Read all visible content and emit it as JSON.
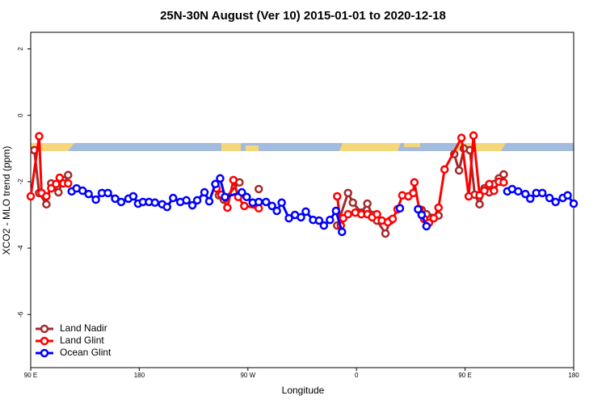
{
  "chart_data": {
    "type": "line",
    "title": "25N-30N August (Ver 10)   2015-01-01 to 2020-12-18",
    "x_label": "Longitude",
    "y_label": "XCO2 - MLO trend (ppm)",
    "xlim": [
      90,
      540
    ],
    "ylim": [
      -7.6,
      2.5
    ],
    "xticks": [
      {
        "value": 90,
        "label": "90 E"
      },
      {
        "value": 180,
        "label": "180"
      },
      {
        "value": 270,
        "label": "90 W"
      },
      {
        "value": 360,
        "label": "0"
      },
      {
        "value": 450,
        "label": "90 E"
      },
      {
        "value": 540,
        "label": "180"
      }
    ],
    "yticks": [
      -6,
      -4,
      -2,
      0,
      2
    ],
    "legend_position": "bottom-left",
    "series": [
      {
        "name": "Land Nadir",
        "color": "#a52a2a",
        "x": [
          93,
          97,
          103,
          107,
          113,
          117,
          121,
          null,
          246,
          250,
          263,
          null,
          279,
          null,
          344,
          353,
          357,
          364,
          369,
          373,
          377,
          384,
          388,
          null,
          414,
          418,
          428,
          null,
          441,
          445,
          449,
          454,
          458,
          462,
          466,
          470,
          474,
          478,
          482
        ],
        "values": [
          -1.05,
          -2.34,
          -2.68,
          -2.05,
          -2.32,
          -1.95,
          -1.8,
          null,
          -2.41,
          -2.54,
          -2.02,
          null,
          -2.22,
          null,
          -3.32,
          -2.34,
          -2.63,
          -2.93,
          -2.66,
          -3.0,
          -3.17,
          -3.56,
          -3.17,
          null,
          -2.85,
          -2.98,
          -3.02,
          null,
          -1.17,
          -1.66,
          -1.0,
          -1.05,
          -2.39,
          -2.68,
          -2.2,
          -2.32,
          -2.07,
          -1.9,
          -1.78
        ]
      },
      {
        "name": "Land Glint",
        "color": "#ff0000",
        "x": [
          90,
          97,
          99,
          103,
          107,
          111,
          114,
          117,
          121,
          null,
          244,
          248,
          253,
          258,
          262,
          267,
          279,
          null,
          344,
          347,
          349,
          353,
          359,
          364,
          369,
          373,
          377,
          381,
          386,
          390,
          394,
          398,
          403,
          407,
          408,
          412,
          416,
          420,
          424,
          428,
          433,
          447,
          453,
          457,
          462,
          466,
          470,
          474,
          478,
          482
        ],
        "values": [
          -2.44,
          -0.63,
          -2.34,
          -2.44,
          -2.2,
          -2.07,
          -1.88,
          -2.05,
          -2.05,
          null,
          -2.2,
          -2.39,
          -2.78,
          -1.95,
          -2.46,
          -2.73,
          -2.8,
          null,
          -2.44,
          -3.32,
          -3.1,
          -2.98,
          -2.93,
          -2.98,
          -2.98,
          -3.07,
          -2.98,
          -3.17,
          -3.22,
          -3.12,
          -2.83,
          -2.41,
          -2.44,
          -2.34,
          -2.02,
          -2.83,
          -3.12,
          -3.24,
          -3.1,
          -2.78,
          -1.63,
          -0.68,
          -2.44,
          -0.61,
          -2.41,
          -2.27,
          -2.07,
          -2.27,
          -2.0,
          -2.02
        ]
      },
      {
        "name": "Ocean Glint",
        "color": "#0000ff",
        "x": [
          124,
          128,
          133,
          138,
          144,
          149,
          154,
          160,
          165,
          171,
          175,
          179,
          183,
          188,
          193,
          199,
          203,
          208,
          214,
          219,
          224,
          228,
          234,
          238,
          243,
          247,
          251,
          265,
          269,
          274,
          279,
          285,
          290,
          294,
          298,
          304,
          309,
          314,
          318,
          324,
          329,
          333,
          338,
          343,
          348,
          null,
          396,
          null,
          411,
          414,
          418,
          null,
          485,
          489,
          494,
          500,
          504,
          509,
          514,
          520,
          525,
          531,
          535,
          540
        ],
        "values": [
          -2.29,
          -2.2,
          -2.27,
          -2.37,
          -2.54,
          -2.34,
          -2.34,
          -2.51,
          -2.61,
          -2.51,
          -2.44,
          -2.66,
          -2.61,
          -2.61,
          -2.63,
          -2.68,
          -2.76,
          -2.49,
          -2.61,
          -2.56,
          -2.71,
          -2.56,
          -2.32,
          -2.59,
          -2.07,
          -1.9,
          -2.46,
          -2.32,
          -2.46,
          -2.63,
          -2.61,
          -2.61,
          -2.73,
          -2.88,
          -2.63,
          -3.1,
          -3.0,
          -3.07,
          -2.9,
          -3.15,
          -3.17,
          -3.32,
          -3.15,
          -2.88,
          -3.51,
          null,
          -2.8,
          null,
          -2.83,
          -3.0,
          -3.34,
          null,
          -2.29,
          -2.22,
          -2.29,
          -2.37,
          -2.51,
          -2.34,
          -2.34,
          -2.49,
          -2.61,
          -2.49,
          -2.41,
          -2.66
        ]
      }
    ]
  }
}
